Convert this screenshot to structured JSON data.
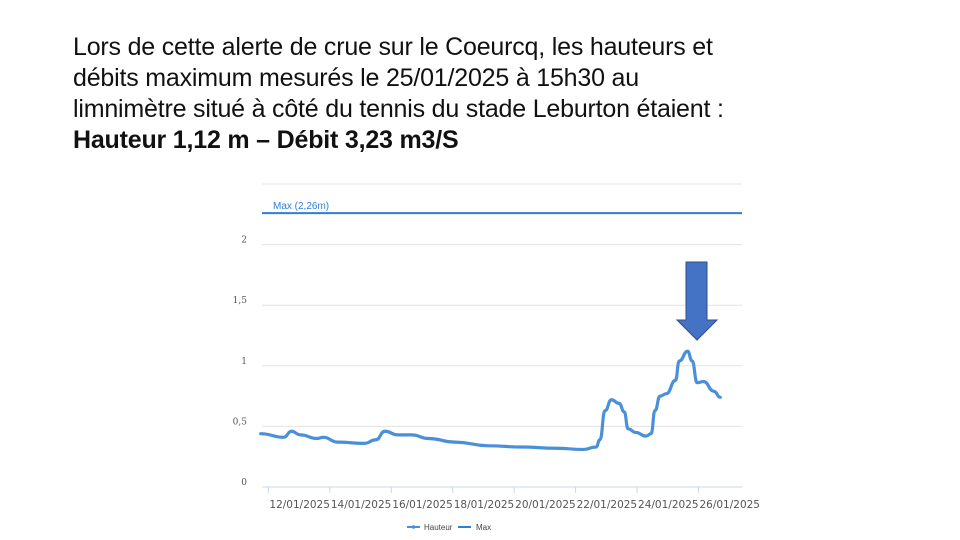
{
  "title": {
    "lines": [
      "Lors de cette alerte de crue sur le Coeurcq, les hauteurs et",
      "débits maximum mesurés le 25/01/2025 à 15h30 au",
      "limnimètre situé à côté du tennis du stade Leburton étaient :"
    ],
    "bold_line": "Hauteur 1,12 m – Débit 3,23 m3/S"
  },
  "arrow": {
    "icon": "down-arrow-icon",
    "color": "#4472c4"
  },
  "chart_data": {
    "type": "line",
    "ylim": [
      0,
      2.5
    ],
    "xlim": [
      "2025-01-11T19:00",
      "2025-01-27T10:00"
    ],
    "grid": true,
    "legend_position": "bottom",
    "yticks": [
      {
        "value": 0,
        "label": "0"
      },
      {
        "value": 0.5,
        "label": "0,5"
      },
      {
        "value": 1,
        "label": "1"
      },
      {
        "value": 1.5,
        "label": "1,5"
      },
      {
        "value": 2,
        "label": "2"
      }
    ],
    "xticks": [
      {
        "value": "2025-01-12T00:00",
        "label": "12/01/2025"
      },
      {
        "value": "2025-01-14T00:00",
        "label": "14/01/2025"
      },
      {
        "value": "2025-01-16T00:00",
        "label": "16/01/2025"
      },
      {
        "value": "2025-01-18T00:00",
        "label": "18/01/2025"
      },
      {
        "value": "2025-01-20T00:00",
        "label": "20/01/2025"
      },
      {
        "value": "2025-01-22T00:00",
        "label": "22/01/2025"
      },
      {
        "value": "2025-01-24T00:00",
        "label": "24/01/2025"
      },
      {
        "value": "2025-01-26T00:00",
        "label": "26/01/2025"
      }
    ],
    "series": [
      {
        "name": "Hauteur",
        "color": "#4a90d9",
        "points": [
          [
            "2025-01-11T18:00",
            0.44
          ],
          [
            "2025-01-12T12:00",
            0.41
          ],
          [
            "2025-01-12T18:00",
            0.46
          ],
          [
            "2025-01-13T01:00",
            0.43
          ],
          [
            "2025-01-13T14:00",
            0.4
          ],
          [
            "2025-01-13T19:00",
            0.41
          ],
          [
            "2025-01-14T06:00",
            0.37
          ],
          [
            "2025-01-15T03:00",
            0.36
          ],
          [
            "2025-01-15T12:00",
            0.39
          ],
          [
            "2025-01-15T19:00",
            0.46
          ],
          [
            "2025-01-16T05:00",
            0.43
          ],
          [
            "2025-01-16T16:00",
            0.43
          ],
          [
            "2025-01-17T05:00",
            0.4
          ],
          [
            "2025-01-18T02:00",
            0.37
          ],
          [
            "2025-01-19T04:00",
            0.34
          ],
          [
            "2025-01-20T06:00",
            0.33
          ],
          [
            "2025-01-21T08:00",
            0.32
          ],
          [
            "2025-01-22T06:00",
            0.31
          ],
          [
            "2025-01-22T16:00",
            0.33
          ],
          [
            "2025-01-22T19:00",
            0.39
          ],
          [
            "2025-01-22T23:00",
            0.63
          ],
          [
            "2025-01-23T04:00",
            0.72
          ],
          [
            "2025-01-23T10:00",
            0.69
          ],
          [
            "2025-01-23T14:00",
            0.62
          ],
          [
            "2025-01-23T17:00",
            0.48
          ],
          [
            "2025-01-23T23:00",
            0.45
          ],
          [
            "2025-01-24T07:00",
            0.42
          ],
          [
            "2025-01-24T11:00",
            0.44
          ],
          [
            "2025-01-24T14:00",
            0.63
          ],
          [
            "2025-01-24T18:00",
            0.75
          ],
          [
            "2025-01-24T23:00",
            0.77
          ],
          [
            "2025-01-25T06:00",
            0.88
          ],
          [
            "2025-01-25T09:00",
            1.04
          ],
          [
            "2025-01-25T15:30",
            1.12
          ],
          [
            "2025-01-25T19:00",
            1.04
          ],
          [
            "2025-01-25T23:00",
            0.86
          ],
          [
            "2025-01-26T04:00",
            0.87
          ],
          [
            "2025-01-26T12:00",
            0.79
          ],
          [
            "2025-01-26T17:00",
            0.74
          ]
        ]
      },
      {
        "name": "Max",
        "color": "#2f7ed8",
        "value": 2.26,
        "label": "Max (2,26m)"
      }
    ]
  }
}
